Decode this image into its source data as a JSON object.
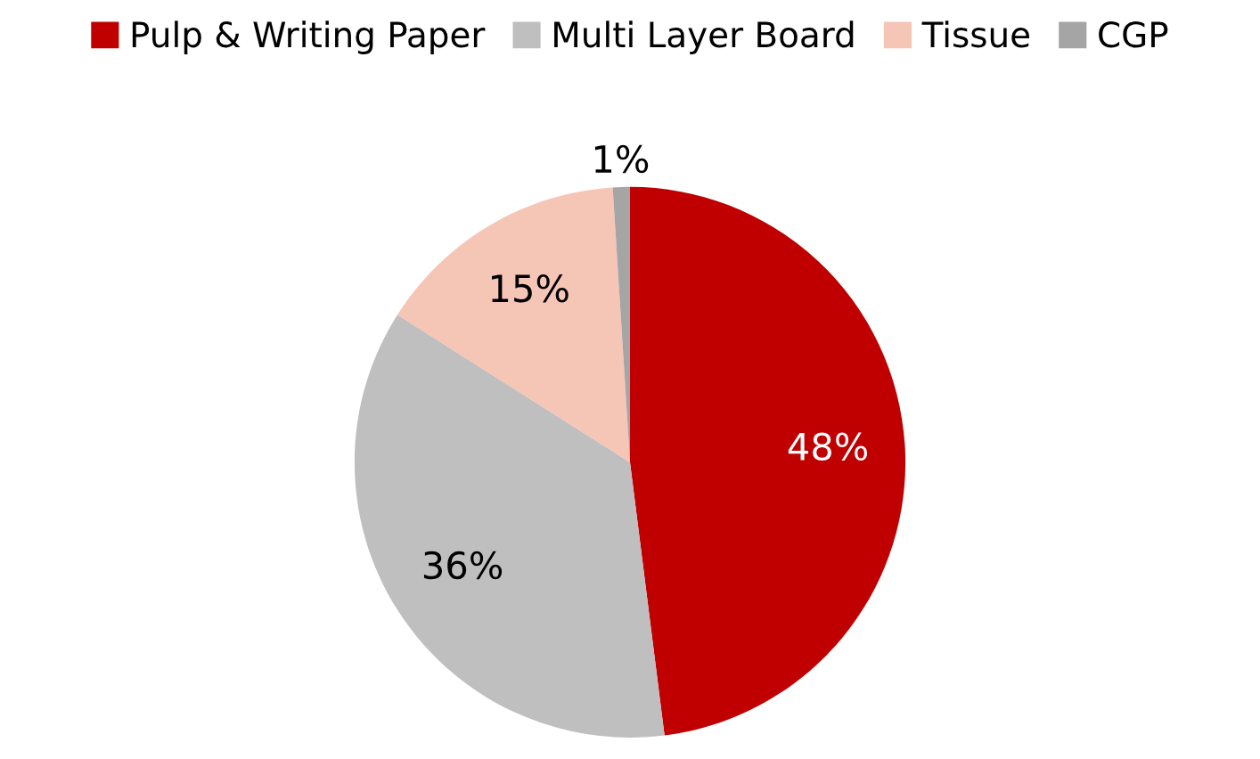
{
  "chart_data": {
    "type": "pie",
    "categories": [
      "Pulp & Writing Paper",
      "Multi Layer Board",
      "Tissue",
      "CGP"
    ],
    "values": [
      48,
      36,
      15,
      1
    ],
    "colors": [
      "#c00000",
      "#bfbfbf",
      "#f5c5b5",
      "#a5a5a5"
    ],
    "value_labels": [
      "48%",
      "36%",
      "15%",
      "1%"
    ],
    "legend": "top"
  }
}
